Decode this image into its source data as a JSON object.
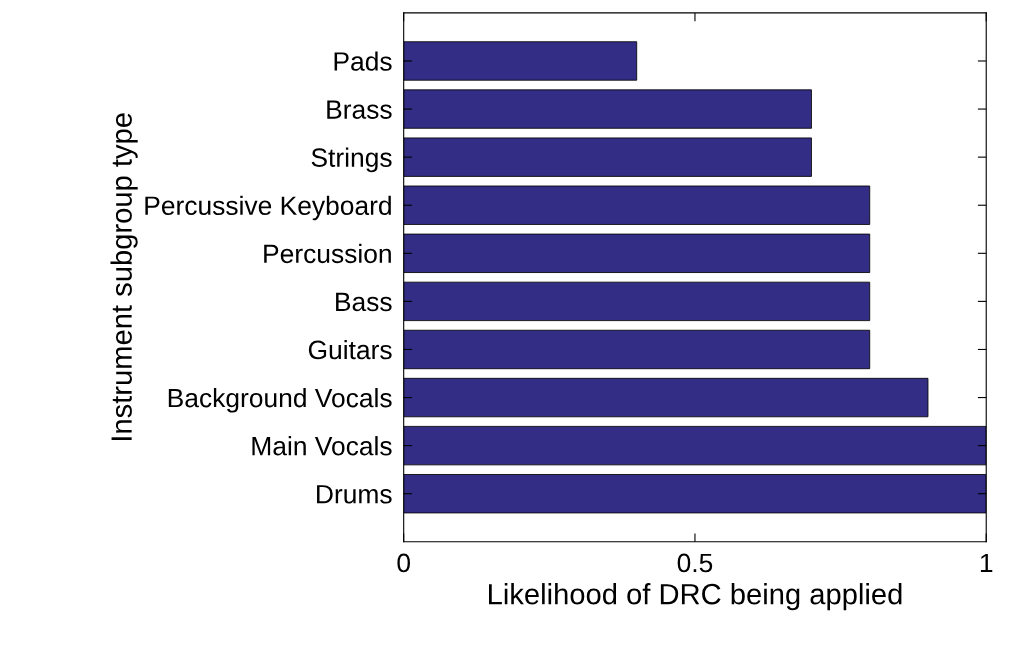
{
  "chart_data": {
    "type": "bar",
    "orientation": "horizontal",
    "xlabel": "Likelihood of DRC being applied",
    "ylabel": "Instrument subgroup type",
    "categories": [
      "Pads",
      "Brass",
      "Strings",
      "Percussive Keyboard",
      "Percussion",
      "Bass",
      "Guitars",
      "Background Vocals",
      "Main Vocals",
      "Drums"
    ],
    "values": [
      0.4,
      0.7,
      0.7,
      0.8,
      0.8,
      0.8,
      0.8,
      0.9,
      1,
      1
    ],
    "color": "#342d85",
    "xlim": [
      0,
      1
    ],
    "xticks": [
      0,
      0.5,
      1
    ],
    "grid": false,
    "legend": false
  }
}
